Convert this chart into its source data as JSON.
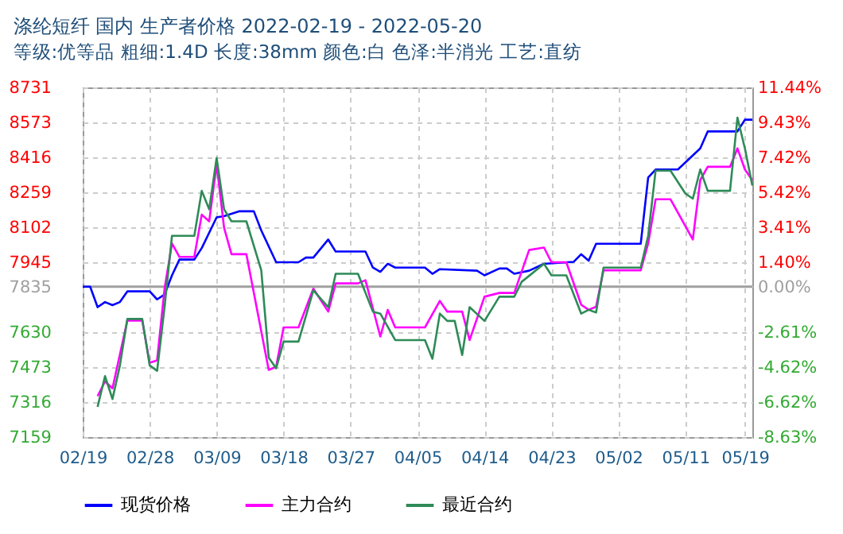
{
  "chart_data": {
    "type": "line",
    "title": "涤纶短纤  国内  生产者价格  2022-02-19 - 2022-05-20",
    "subtitle": "等级:优等品 粗细:1.4D 长度:38mm 颜色:白 色泽:半消光 工艺:直纺",
    "xlim": [
      "2022-02-19",
      "2022-05-20"
    ],
    "xticks": [
      {
        "value": "2022-02-19",
        "label": "02/19"
      },
      {
        "value": "2022-02-28",
        "label": "02/28"
      },
      {
        "value": "2022-03-09",
        "label": "03/09"
      },
      {
        "value": "2022-03-18",
        "label": "03/18"
      },
      {
        "value": "2022-03-27",
        "label": "03/27"
      },
      {
        "value": "2022-04-05",
        "label": "04/05"
      },
      {
        "value": "2022-04-14",
        "label": "04/14"
      },
      {
        "value": "2022-04-23",
        "label": "04/23"
      },
      {
        "value": "2022-05-02",
        "label": "05/02"
      },
      {
        "value": "2022-05-11",
        "label": "05/11"
      },
      {
        "value": "2022-05-19",
        "label": "05/19"
      }
    ],
    "ylim": [
      7159,
      8731
    ],
    "yticks": [
      8731,
      8573,
      8416,
      8259,
      8102,
      7945,
      7835,
      7630,
      7473,
      7316,
      7159
    ],
    "y2lim": [
      -8.63,
      11.44
    ],
    "y2ticks": [
      {
        "value": 11.44,
        "label": "11.44%"
      },
      {
        "value": 9.43,
        "label": "9.43%"
      },
      {
        "value": 7.42,
        "label": "7.42%"
      },
      {
        "value": 5.42,
        "label": "5.42%"
      },
      {
        "value": 3.41,
        "label": "3.41%"
      },
      {
        "value": 1.4,
        "label": "1.40%"
      },
      {
        "value": 0,
        "label": "0.00%"
      },
      {
        "value": -2.61,
        "label": "-2.61%"
      },
      {
        "value": -4.62,
        "label": "-4.62%"
      },
      {
        "value": -6.62,
        "label": "-6.62%"
      },
      {
        "value": -8.63,
        "label": "-8.63%"
      }
    ],
    "ref_lines": [
      {
        "axis": "y2",
        "value": 0,
        "color": "#a0a0a0"
      }
    ],
    "grid": true,
    "legend": "bottom",
    "line_style": "solid",
    "series": [
      {
        "name": "现货价格",
        "color": "#0000ff",
        "x": [
          "2022-02-19",
          "2022-02-20",
          "2022-02-21",
          "2022-02-22",
          "2022-02-23",
          "2022-02-24",
          "2022-02-25",
          "2022-02-28",
          "2022-03-01",
          "2022-03-02",
          "2022-03-03",
          "2022-03-04",
          "2022-03-06",
          "2022-03-07",
          "2022-03-09",
          "2022-03-10",
          "2022-03-12",
          "2022-03-14",
          "2022-03-15",
          "2022-03-17",
          "2022-03-20",
          "2022-03-21",
          "2022-03-22",
          "2022-03-24",
          "2022-03-25",
          "2022-03-29",
          "2022-03-30",
          "2022-03-31",
          "2022-04-01",
          "2022-04-02",
          "2022-04-06",
          "2022-04-07",
          "2022-04-08",
          "2022-04-13",
          "2022-04-14",
          "2022-04-16",
          "2022-04-17",
          "2022-04-18",
          "2022-04-20",
          "2022-04-22",
          "2022-04-26",
          "2022-04-27",
          "2022-04-28",
          "2022-04-29",
          "2022-05-05",
          "2022-05-06",
          "2022-05-07",
          "2022-05-10",
          "2022-05-13",
          "2022-05-14",
          "2022-05-18",
          "2022-05-19",
          "2022-05-20"
        ],
        "values": [
          7835,
          7835,
          7743,
          7766,
          7752,
          7766,
          7814,
          7814,
          7778,
          7800,
          7886,
          7957,
          7957,
          8009,
          8147,
          8152,
          8174,
          8174,
          8088,
          7945,
          7945,
          7966,
          7966,
          8047,
          7993,
          7993,
          7921,
          7902,
          7938,
          7921,
          7921,
          7893,
          7914,
          7907,
          7886,
          7917,
          7917,
          7893,
          7907,
          7938,
          7947,
          7981,
          7952,
          8028,
          8028,
          8326,
          8362,
          8362,
          8457,
          8533,
          8533,
          8586,
          8586
        ]
      },
      {
        "name": "主力合约",
        "color": "#ff00ff",
        "x": [
          "2022-02-21",
          "2022-02-22",
          "2022-02-23",
          "2022-02-25",
          "2022-02-27",
          "2022-02-28",
          "2022-03-01",
          "2022-03-02",
          "2022-03-03",
          "2022-03-04",
          "2022-03-06",
          "2022-03-07",
          "2022-03-08",
          "2022-03-09",
          "2022-03-10",
          "2022-03-11",
          "2022-03-13",
          "2022-03-16",
          "2022-03-17",
          "2022-03-18",
          "2022-03-20",
          "2022-03-22",
          "2022-03-24",
          "2022-03-25",
          "2022-03-28",
          "2022-03-29",
          "2022-03-31",
          "2022-04-01",
          "2022-04-02",
          "2022-04-06",
          "2022-04-08",
          "2022-04-09",
          "2022-04-11",
          "2022-04-12",
          "2022-04-14",
          "2022-04-16",
          "2022-04-18",
          "2022-04-20",
          "2022-04-22",
          "2022-04-23",
          "2022-04-25",
          "2022-04-27",
          "2022-04-28",
          "2022-04-29",
          "2022-04-30",
          "2022-05-05",
          "2022-05-06",
          "2022-05-07",
          "2022-05-09",
          "2022-05-12",
          "2022-05-13",
          "2022-05-14",
          "2022-05-17",
          "2022-05-18",
          "2022-05-19",
          "2022-05-20"
        ],
        "values": [
          7343,
          7409,
          7378,
          7683,
          7683,
          7493,
          7504,
          7826,
          8029,
          7969,
          7969,
          8159,
          8129,
          8386,
          8100,
          7981,
          7981,
          7461,
          7475,
          7652,
          7652,
          7826,
          7723,
          7850,
          7850,
          7864,
          7611,
          7731,
          7652,
          7652,
          7771,
          7723,
          7723,
          7595,
          7790,
          7807,
          7807,
          8000,
          8011,
          7945,
          7945,
          7754,
          7731,
          7745,
          7909,
          7909,
          8029,
          8228,
          8228,
          8047,
          8314,
          8374,
          8374,
          8457,
          8362,
          8314
        ]
      },
      {
        "name": "最近合约",
        "color": "#2e8b57",
        "x": [
          "2022-02-21",
          "2022-02-22",
          "2022-02-23",
          "2022-02-24",
          "2022-02-25",
          "2022-02-27",
          "2022-02-28",
          "2022-03-01",
          "2022-03-02",
          "2022-03-03",
          "2022-03-06",
          "2022-03-07",
          "2022-03-08",
          "2022-03-09",
          "2022-03-10",
          "2022-03-11",
          "2022-03-13",
          "2022-03-15",
          "2022-03-16",
          "2022-03-17",
          "2022-03-18",
          "2022-03-20",
          "2022-03-22",
          "2022-03-24",
          "2022-03-25",
          "2022-03-28",
          "2022-03-30",
          "2022-03-31",
          "2022-04-02",
          "2022-04-06",
          "2022-04-07",
          "2022-04-08",
          "2022-04-09",
          "2022-04-10",
          "2022-04-11",
          "2022-04-12",
          "2022-04-14",
          "2022-04-16",
          "2022-04-18",
          "2022-04-19",
          "2022-04-22",
          "2022-04-23",
          "2022-04-25",
          "2022-04-27",
          "2022-04-28",
          "2022-04-29",
          "2022-04-30",
          "2022-05-05",
          "2022-05-06",
          "2022-05-07",
          "2022-05-09",
          "2022-05-11",
          "2022-05-12",
          "2022-05-13",
          "2022-05-14",
          "2022-05-17",
          "2022-05-18",
          "2022-05-19",
          "2022-05-20"
        ],
        "values": [
          7295,
          7433,
          7330,
          7481,
          7690,
          7690,
          7481,
          7457,
          7743,
          8064,
          8064,
          8266,
          8183,
          8414,
          8183,
          8129,
          8129,
          7909,
          7516,
          7468,
          7588,
          7588,
          7819,
          7743,
          7893,
          7893,
          7723,
          7714,
          7595,
          7595,
          7511,
          7714,
          7681,
          7681,
          7528,
          7743,
          7681,
          7790,
          7790,
          7857,
          7938,
          7886,
          7886,
          7714,
          7731,
          7719,
          7921,
          7921,
          8064,
          8357,
          8357,
          8254,
          8231,
          8362,
          8266,
          8266,
          8595,
          8457,
          8290
        ]
      }
    ]
  }
}
